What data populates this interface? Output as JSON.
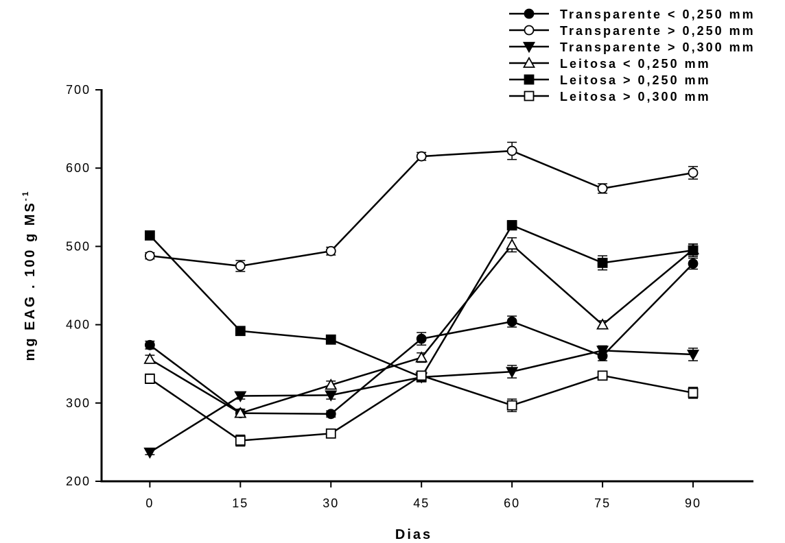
{
  "chart_data": {
    "type": "line",
    "xlabel": "Dias",
    "ylabel_main": "mg EAG . 100 g MS",
    "ylabel_sup": "-1",
    "x": [
      0,
      15,
      30,
      45,
      60,
      75,
      90
    ],
    "xlim": [
      -8,
      100
    ],
    "ylim": [
      200,
      700
    ],
    "yticks": [
      200,
      300,
      400,
      500,
      600,
      700
    ],
    "grid": false,
    "legend_position": "top-right",
    "series": [
      {
        "name": "Transparente < 0,250 mm",
        "marker": "circle",
        "fill": "#000000",
        "values": [
          374,
          287,
          286,
          382,
          404,
          360,
          478
        ],
        "errors": [
          5,
          5,
          4,
          8,
          7,
          6,
          7
        ]
      },
      {
        "name": "Transparente > 0,250 mm",
        "marker": "circle",
        "fill": "#ffffff",
        "values": [
          488,
          475,
          494,
          615,
          622,
          574,
          594
        ],
        "errors": [
          4,
          7,
          5,
          5,
          11,
          6,
          8
        ]
      },
      {
        "name": "Transparente > 0,300 mm",
        "marker": "triangle-down",
        "fill": "#000000",
        "values": [
          237,
          309,
          310,
          333,
          340,
          367,
          362
        ],
        "errors": [
          3,
          4,
          5,
          6,
          8,
          6,
          8
        ]
      },
      {
        "name": "Leitosa < 0,250 mm",
        "marker": "triangle-up",
        "fill": "#ffffff",
        "values": [
          356,
          287,
          323,
          358,
          502,
          400,
          496
        ],
        "errors": [
          5,
          5,
          5,
          6,
          9,
          5,
          7
        ]
      },
      {
        "name": "Leitosa > 0,250 mm",
        "marker": "square",
        "fill": "#000000",
        "values": [
          514,
          392,
          381,
          333,
          527,
          479,
          495
        ],
        "errors": [
          5,
          5,
          4,
          5,
          6,
          9,
          8
        ]
      },
      {
        "name": "Leitosa > 0,300 mm",
        "marker": "square",
        "fill": "#ffffff",
        "values": [
          331,
          252,
          261,
          335,
          297,
          335,
          313
        ],
        "errors": [
          6,
          7,
          4,
          5,
          8,
          5,
          7
        ]
      }
    ]
  }
}
